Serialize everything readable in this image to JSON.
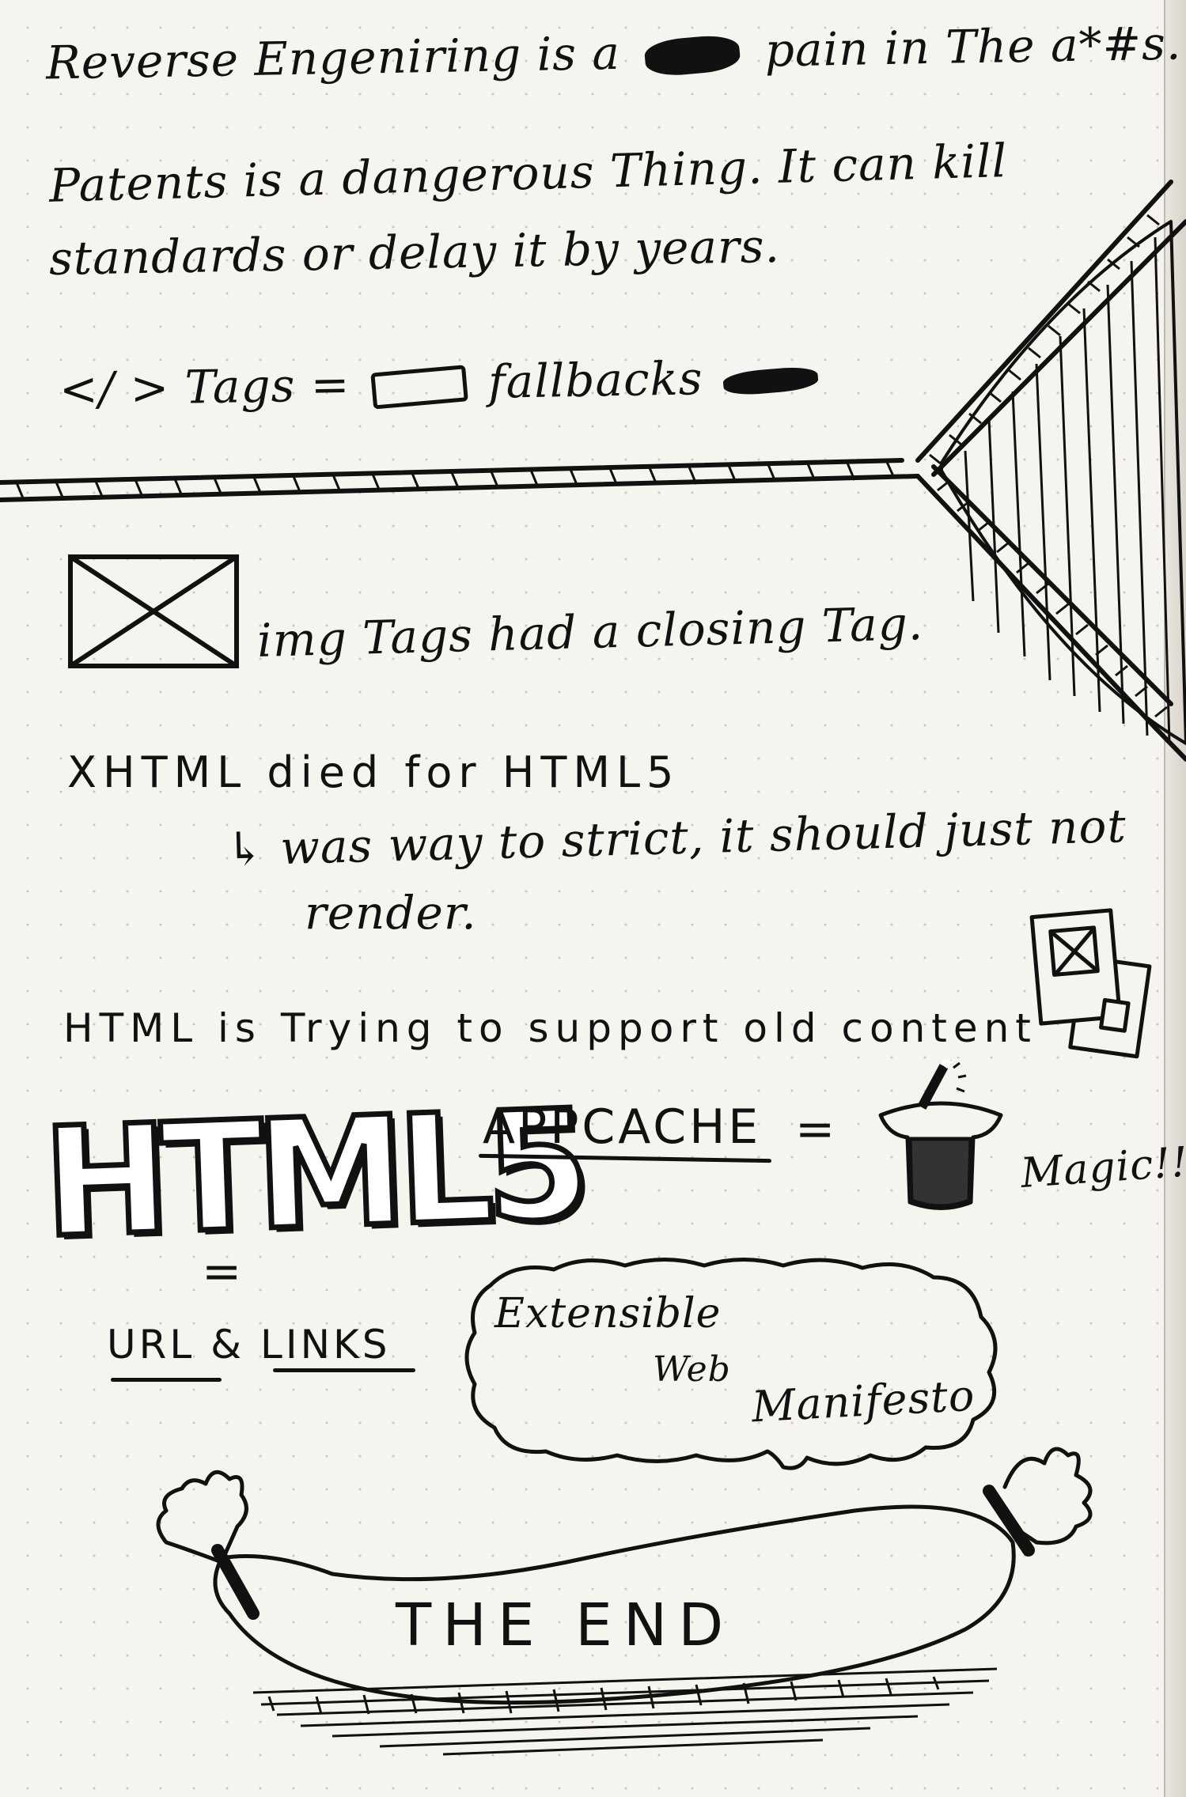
{
  "notes": {
    "line1": "Reverse Engeniring is a",
    "line1_end": "pain in The a*#s.",
    "line2": "Patents is a dangerous Thing. It can kill",
    "line3": "standards or delay it by years.",
    "line4_prefix": "</ > Tags =",
    "line4_end": "fallbacks",
    "line5": "img Tags had a closing Tag.",
    "line6": "XHTML died for HTML5",
    "line7": "↳ was way to strict, it should just not",
    "line8": "render.",
    "line9": "HTML is Trying to support old content",
    "logo": "HTML5",
    "appcache": "APPCACHE",
    "equals": "=",
    "magic": "Magic!!!",
    "urls": "URL & LINKS",
    "bubble_line1": "Extensible",
    "bubble_line2": "Web",
    "bubble_line3": "Manifesto",
    "ending": "THE END"
  },
  "colors": {
    "ink": "#111111",
    "paper": "#f6f4ee",
    "dots": "#c9c6bd"
  },
  "icons": {
    "image_placeholder": "image-placeholder-icon",
    "old_pictures": "photo-stack-icon",
    "magic_hat": "top-hat-icon",
    "wand": "magic-wand-icon",
    "speech_bubble": "cloud-bubble-icon",
    "hammock": "hammock-icon",
    "sausage": "sausage-pillow-icon"
  }
}
